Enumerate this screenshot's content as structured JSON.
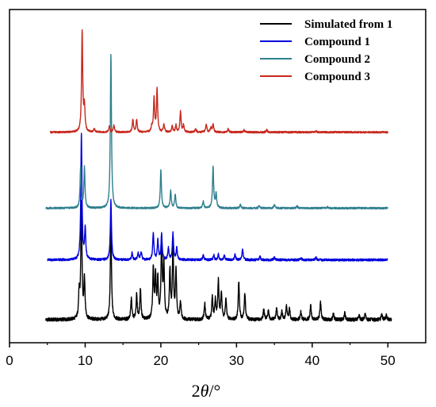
{
  "chart_data": {
    "type": "line",
    "xlabel": "2θ/°",
    "ylabel": "",
    "xlim": [
      0,
      55
    ],
    "xticks": [
      "0",
      "10",
      "20",
      "30",
      "40",
      "50"
    ],
    "yticks": "none",
    "legend_position": "top-right",
    "series": [
      {
        "name": "Simulated from 1",
        "color": "#000000",
        "baseline": 0.0,
        "x_range": [
          4.8,
          50.5
        ],
        "noise": 0.03,
        "peaks": [
          [
            9.2,
            0.22
          ],
          [
            9.5,
            1.0
          ],
          [
            9.9,
            0.35
          ],
          [
            13.4,
            0.83
          ],
          [
            16.1,
            0.18
          ],
          [
            16.8,
            0.21
          ],
          [
            17.3,
            0.26
          ],
          [
            19.0,
            0.43
          ],
          [
            19.3,
            0.37
          ],
          [
            19.6,
            0.33
          ],
          [
            20.1,
            0.69
          ],
          [
            20.4,
            0.47
          ],
          [
            21.2,
            0.42
          ],
          [
            21.6,
            0.64
          ],
          [
            22.0,
            0.42
          ],
          [
            22.6,
            0.15
          ],
          [
            25.8,
            0.14
          ],
          [
            26.8,
            0.19
          ],
          [
            27.2,
            0.17
          ],
          [
            27.6,
            0.33
          ],
          [
            28.0,
            0.24
          ],
          [
            28.6,
            0.18
          ],
          [
            30.3,
            0.33
          ],
          [
            31.1,
            0.23
          ],
          [
            33.6,
            0.09
          ],
          [
            34.2,
            0.08
          ],
          [
            35.3,
            0.1
          ],
          [
            36.0,
            0.07
          ],
          [
            36.6,
            0.12
          ],
          [
            37.0,
            0.09
          ],
          [
            38.5,
            0.07
          ],
          [
            39.8,
            0.13
          ],
          [
            41.1,
            0.15
          ],
          [
            42.8,
            0.05
          ],
          [
            44.3,
            0.06
          ],
          [
            46.2,
            0.04
          ],
          [
            47.0,
            0.05
          ],
          [
            49.2,
            0.05
          ],
          [
            49.8,
            0.04
          ]
        ]
      },
      {
        "name": "Compound 1",
        "color": "#0000dd",
        "baseline": 0.52,
        "x_range": [
          5.0,
          50.0
        ],
        "noise": 0.02,
        "peaks": [
          [
            9.5,
            1.09
          ],
          [
            10.0,
            0.27
          ],
          [
            13.4,
            0.52
          ],
          [
            16.2,
            0.06
          ],
          [
            17.0,
            0.06
          ],
          [
            17.4,
            0.07
          ],
          [
            19.0,
            0.24
          ],
          [
            19.6,
            0.17
          ],
          [
            20.1,
            0.22
          ],
          [
            21.0,
            0.1
          ],
          [
            21.6,
            0.23
          ],
          [
            22.1,
            0.1
          ],
          [
            25.6,
            0.04
          ],
          [
            27.0,
            0.04
          ],
          [
            27.6,
            0.05
          ],
          [
            28.4,
            0.04
          ],
          [
            29.8,
            0.05
          ],
          [
            30.8,
            0.09
          ],
          [
            33.1,
            0.03
          ],
          [
            35.0,
            0.02
          ],
          [
            38.5,
            0.02
          ],
          [
            40.5,
            0.02
          ]
        ]
      },
      {
        "name": "Compound 2",
        "color": "#2e7f8e",
        "baseline": 0.97,
        "x_range": [
          4.8,
          50.0
        ],
        "noise": 0.015,
        "peaks": [
          [
            9.4,
            0.35
          ],
          [
            9.9,
            0.35
          ],
          [
            13.4,
            1.34
          ],
          [
            20.0,
            0.33
          ],
          [
            21.3,
            0.15
          ],
          [
            21.9,
            0.12
          ],
          [
            25.6,
            0.06
          ],
          [
            26.9,
            0.36
          ],
          [
            27.3,
            0.13
          ],
          [
            30.5,
            0.03
          ],
          [
            33.0,
            0.02
          ],
          [
            35.0,
            0.03
          ],
          [
            38.0,
            0.02
          ],
          [
            42.0,
            0.01
          ]
        ]
      },
      {
        "name": "Compound 3",
        "color": "#c8281e",
        "baseline": 1.63,
        "x_range": [
          5.4,
          50.0
        ],
        "noise": 0.015,
        "peaks": [
          [
            9.6,
            0.88
          ],
          [
            9.9,
            0.21
          ],
          [
            11.2,
            0.03
          ],
          [
            13.2,
            0.05
          ],
          [
            13.8,
            0.06
          ],
          [
            16.3,
            0.11
          ],
          [
            16.8,
            0.11
          ],
          [
            18.8,
            0.05
          ],
          [
            19.1,
            0.29
          ],
          [
            19.5,
            0.37
          ],
          [
            20.4,
            0.07
          ],
          [
            21.5,
            0.05
          ],
          [
            22.0,
            0.06
          ],
          [
            22.6,
            0.18
          ],
          [
            23.0,
            0.06
          ],
          [
            24.6,
            0.03
          ],
          [
            26.0,
            0.07
          ],
          [
            26.6,
            0.04
          ],
          [
            26.9,
            0.07
          ],
          [
            28.9,
            0.03
          ],
          [
            31.0,
            0.02
          ],
          [
            34.0,
            0.02
          ],
          [
            40.5,
            0.01
          ]
        ]
      }
    ]
  }
}
